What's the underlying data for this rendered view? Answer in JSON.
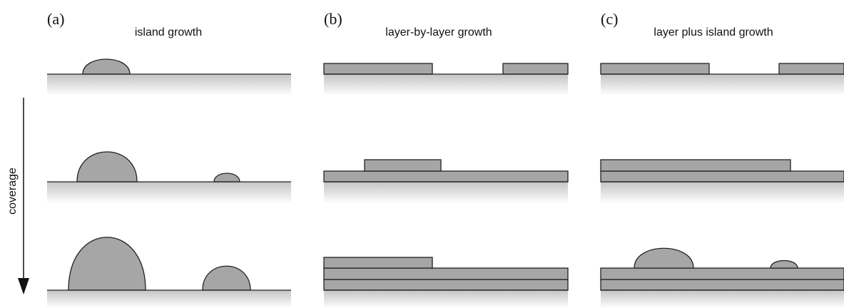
{
  "panels": [
    {
      "label": "(a)",
      "title": "island growth"
    },
    {
      "label": "(b)",
      "title": "layer-by-layer growth"
    },
    {
      "label": "(c)",
      "title": "layer plus island growth"
    }
  ],
  "axis_label": "coverage"
}
